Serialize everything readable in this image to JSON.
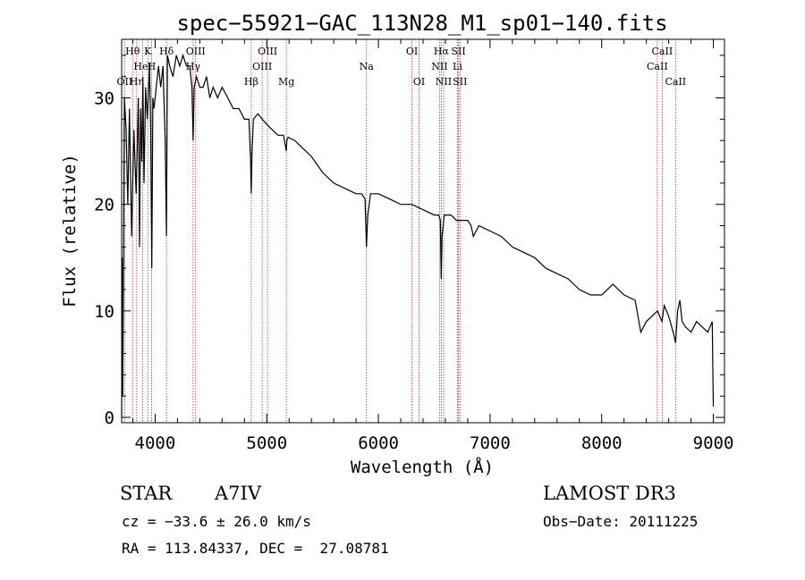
{
  "chart_data": {
    "type": "line",
    "title": "spec−55921−GAC_113N28_M1_sp01−140.fits",
    "xlabel": "Wavelength (Å)",
    "ylabel": "Flux (relative)",
    "xlim": [
      3700,
      9100
    ],
    "ylim": [
      -0.5,
      35.5
    ],
    "x_ticks": [
      4000,
      5000,
      6000,
      7000,
      8000,
      9000
    ],
    "x_tick_labels": [
      "4000",
      "5000",
      "6000",
      "7000",
      "8000",
      "9000"
    ],
    "y_ticks": [
      0,
      10,
      20,
      30
    ],
    "y_tick_labels": [
      "0",
      "10",
      "20",
      "30"
    ],
    "grid": false,
    "series": [
      {
        "name": "flux",
        "x": [
          3700,
          3705,
          3710,
          3725,
          3740,
          3755,
          3770,
          3790,
          3810,
          3830,
          3850,
          3860,
          3870,
          3880,
          3890,
          3900,
          3915,
          3930,
          3950,
          3960,
          3970,
          3980,
          3990,
          4010,
          4030,
          4050,
          4070,
          4090,
          4101,
          4110,
          4130,
          4160,
          4190,
          4220,
          4250,
          4280,
          4310,
          4330,
          4340,
          4350,
          4370,
          4400,
          4430,
          4460,
          4490,
          4520,
          4560,
          4600,
          4650,
          4700,
          4750,
          4800,
          4840,
          4855,
          4861,
          4868,
          4880,
          4920,
          4960,
          5000,
          5050,
          5100,
          5150,
          5175,
          5180,
          5190,
          5250,
          5300,
          5400,
          5500,
          5600,
          5700,
          5800,
          5850,
          5880,
          5893,
          5905,
          5930,
          6000,
          6100,
          6200,
          6300,
          6400,
          6500,
          6540,
          6555,
          6563,
          6570,
          6590,
          6650,
          6700,
          6750,
          6800,
          6830,
          6850,
          6900,
          7000,
          7100,
          7200,
          7300,
          7400,
          7500,
          7600,
          7700,
          7800,
          7900,
          8000,
          8100,
          8200,
          8300,
          8350,
          8400,
          8450,
          8500,
          8540,
          8560,
          8600,
          8640,
          8662,
          8680,
          8700,
          8720,
          8750,
          8800,
          8850,
          8900,
          8950,
          8990,
          9000
        ],
        "values": [
          0,
          15,
          2,
          30,
          27,
          20,
          29,
          17,
          27,
          21,
          30,
          16,
          29,
          24,
          32,
          22,
          31,
          28,
          33,
          27,
          14,
          30,
          29,
          31,
          33,
          31,
          33,
          26,
          17,
          34,
          33,
          32,
          34,
          33,
          34,
          33,
          33,
          31,
          26,
          31,
          32,
          31,
          31,
          32,
          30,
          31,
          30,
          31,
          30,
          29,
          29,
          28,
          28,
          24,
          21,
          25,
          28,
          28.5,
          28,
          27.5,
          27,
          26.5,
          26.5,
          25,
          26,
          26.3,
          26,
          25.5,
          24.5,
          23,
          22,
          21.5,
          21,
          21,
          20.5,
          16,
          19,
          21,
          21,
          20.5,
          20,
          20,
          19.5,
          19,
          19,
          18.5,
          13,
          17,
          19,
          19,
          18.5,
          18.5,
          18.5,
          18,
          17,
          18,
          17.5,
          17,
          16,
          15.5,
          15,
          14,
          13.5,
          13,
          12,
          11.5,
          11.5,
          12.5,
          11.5,
          11,
          8,
          9,
          9.5,
          10,
          9,
          10.5,
          9.5,
          8,
          7,
          10,
          11,
          9,
          8.5,
          8,
          9,
          8.5,
          8,
          9,
          1
        ]
      }
    ],
    "lines": [
      {
        "label": "OII",
        "wavelength": 3727,
        "row": 3
      },
      {
        "label": "Hθ",
        "wavelength": 3798,
        "row": 1
      },
      {
        "label": "Hη",
        "wavelength": 3835,
        "row": 3
      },
      {
        "label": "HeI",
        "wavelength": 3889,
        "row": 2
      },
      {
        "label": "K",
        "wavelength": 3934,
        "row": 1
      },
      {
        "label": "H",
        "wavelength": 3968,
        "row": 2
      },
      {
        "label": "Hδ",
        "wavelength": 4102,
        "row": 1
      },
      {
        "label": "OIII",
        "wavelength": 4363,
        "row": 1
      },
      {
        "label": "Hγ",
        "wavelength": 4340,
        "row": 2
      },
      {
        "label": "Hβ",
        "wavelength": 4861,
        "row": 3
      },
      {
        "label": "OIII",
        "wavelength": 4959,
        "row": 2
      },
      {
        "label": "OIII",
        "wavelength": 5007,
        "row": 1
      },
      {
        "label": "Mg",
        "wavelength": 5175,
        "row": 3
      },
      {
        "label": "Na",
        "wavelength": 5893,
        "row": 2
      },
      {
        "label": "OI",
        "wavelength": 6300,
        "row": 1
      },
      {
        "label": "OI",
        "wavelength": 6364,
        "row": 3
      },
      {
        "label": "NII",
        "wavelength": 6548,
        "row": 2
      },
      {
        "label": "Hα",
        "wavelength": 6563,
        "row": 1
      },
      {
        "label": "NII",
        "wavelength": 6584,
        "row": 3
      },
      {
        "label": "SII",
        "wavelength": 6717,
        "row": 1
      },
      {
        "label": "Li",
        "wavelength": 6708,
        "row": 2
      },
      {
        "label": "SII",
        "wavelength": 6731,
        "row": 3
      },
      {
        "label": "CaII",
        "wavelength": 8498,
        "row": 2
      },
      {
        "label": "CaII",
        "wavelength": 8542,
        "row": 1
      },
      {
        "label": "CaII",
        "wavelength": 8662,
        "row": 3
      }
    ]
  },
  "info": {
    "object_type": "STAR",
    "subclass": "A7IV",
    "survey": "LAMOST DR3",
    "cz": "cz = −33.6 ± 26.0 km/s",
    "obs_date": "Obs−Date: 20111225",
    "coords": "RA = 113.84337, DEC =  27.08781"
  },
  "colors": {
    "spectrum": "#000000",
    "line_markers": "#b03030",
    "axes": "#000000"
  }
}
